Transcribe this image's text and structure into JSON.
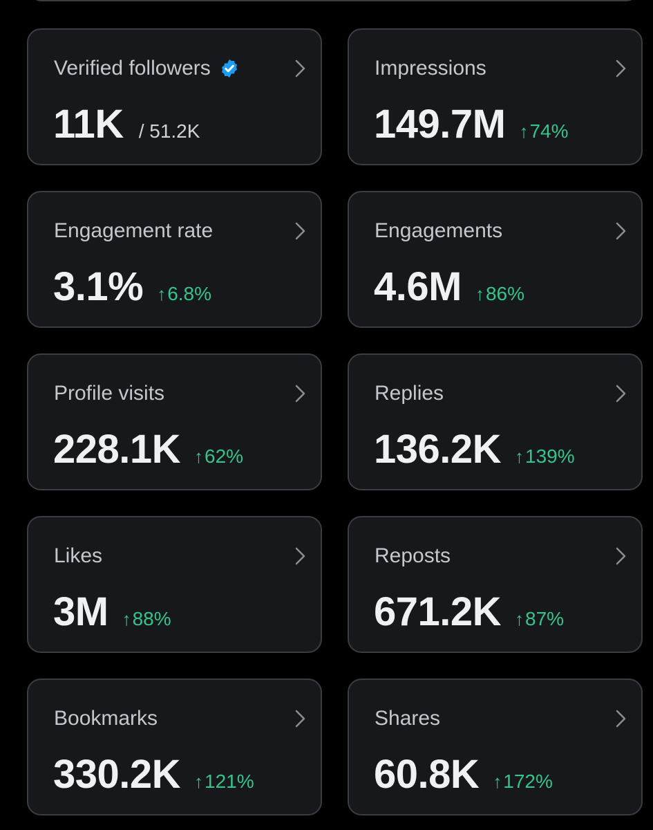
{
  "colors": {
    "background": "#000000",
    "card_background": "#16181c",
    "card_border": "#3a3d42",
    "positive": "#35c48a",
    "verified": "#1d9bf0"
  },
  "icons": {
    "chevron": "chevron-right-icon",
    "verified": "verified-badge-icon",
    "trend": "arrow-up-icon"
  },
  "metrics": [
    {
      "label": "Verified followers",
      "value": "11K",
      "total": "/ 51.2K",
      "verified": true
    },
    {
      "label": "Impressions",
      "value": "149.7M",
      "change": "74%"
    },
    {
      "label": "Engagement rate",
      "value": "3.1%",
      "change": "6.8%"
    },
    {
      "label": "Engagements",
      "value": "4.6M",
      "change": "86%"
    },
    {
      "label": "Profile visits",
      "value": "228.1K",
      "change": "62%"
    },
    {
      "label": "Replies",
      "value": "136.2K",
      "change": "139%"
    },
    {
      "label": "Likes",
      "value": "3M",
      "change": "88%"
    },
    {
      "label": "Reposts",
      "value": "671.2K",
      "change": "87%"
    },
    {
      "label": "Bookmarks",
      "value": "330.2K",
      "change": "121%"
    },
    {
      "label": "Shares",
      "value": "60.8K",
      "change": "172%"
    }
  ]
}
